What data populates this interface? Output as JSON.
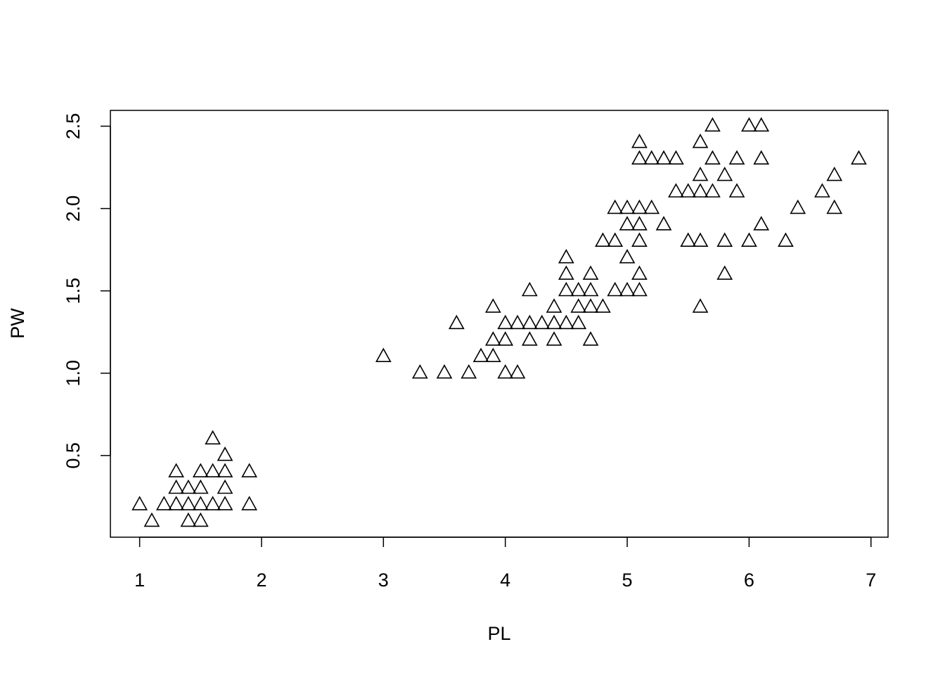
{
  "chart_data": {
    "type": "scatter",
    "title": "",
    "xlabel": "PL",
    "ylabel": "PW",
    "xlim": [
      0.76,
      7.14
    ],
    "ylim": [
      0.004,
      2.596
    ],
    "xticks": [
      1,
      2,
      3,
      4,
      5,
      6,
      7
    ],
    "xtick_labels": [
      "1",
      "2",
      "3",
      "4",
      "5",
      "6",
      "7"
    ],
    "yticks": [
      0.5,
      1.0,
      1.5,
      2.0,
      2.5
    ],
    "ytick_labels": [
      "0.5",
      "1.0",
      "1.5",
      "2.0",
      "2.5"
    ],
    "grid": false,
    "marker": "open-triangle",
    "color": "#000000",
    "points": [
      [
        1.0,
        0.2
      ],
      [
        1.1,
        0.1
      ],
      [
        1.2,
        0.2
      ],
      [
        1.3,
        0.2
      ],
      [
        1.3,
        0.3
      ],
      [
        1.3,
        0.4
      ],
      [
        1.4,
        0.1
      ],
      [
        1.4,
        0.2
      ],
      [
        1.4,
        0.3
      ],
      [
        1.5,
        0.1
      ],
      [
        1.5,
        0.2
      ],
      [
        1.5,
        0.3
      ],
      [
        1.5,
        0.4
      ],
      [
        1.6,
        0.2
      ],
      [
        1.6,
        0.4
      ],
      [
        1.6,
        0.6
      ],
      [
        1.7,
        0.2
      ],
      [
        1.7,
        0.3
      ],
      [
        1.7,
        0.4
      ],
      [
        1.7,
        0.5
      ],
      [
        1.9,
        0.2
      ],
      [
        1.9,
        0.4
      ],
      [
        3.0,
        1.1
      ],
      [
        3.3,
        1.0
      ],
      [
        3.5,
        1.0
      ],
      [
        3.6,
        1.3
      ],
      [
        3.7,
        1.0
      ],
      [
        3.8,
        1.1
      ],
      [
        3.9,
        1.1
      ],
      [
        3.9,
        1.2
      ],
      [
        3.9,
        1.4
      ],
      [
        4.0,
        1.0
      ],
      [
        4.0,
        1.2
      ],
      [
        4.0,
        1.3
      ],
      [
        4.1,
        1.0
      ],
      [
        4.1,
        1.3
      ],
      [
        4.2,
        1.2
      ],
      [
        4.2,
        1.3
      ],
      [
        4.2,
        1.5
      ],
      [
        4.3,
        1.3
      ],
      [
        4.4,
        1.2
      ],
      [
        4.4,
        1.3
      ],
      [
        4.4,
        1.4
      ],
      [
        4.5,
        1.3
      ],
      [
        4.5,
        1.5
      ],
      [
        4.5,
        1.6
      ],
      [
        4.5,
        1.7
      ],
      [
        4.6,
        1.3
      ],
      [
        4.6,
        1.4
      ],
      [
        4.6,
        1.5
      ],
      [
        4.7,
        1.2
      ],
      [
        4.7,
        1.4
      ],
      [
        4.7,
        1.5
      ],
      [
        4.7,
        1.6
      ],
      [
        4.8,
        1.4
      ],
      [
        4.8,
        1.8
      ],
      [
        4.9,
        1.5
      ],
      [
        4.9,
        1.8
      ],
      [
        4.9,
        2.0
      ],
      [
        5.0,
        1.5
      ],
      [
        5.0,
        1.7
      ],
      [
        5.0,
        1.9
      ],
      [
        5.0,
        2.0
      ],
      [
        5.1,
        1.5
      ],
      [
        5.1,
        1.6
      ],
      [
        5.1,
        1.8
      ],
      [
        5.1,
        1.9
      ],
      [
        5.1,
        2.0
      ],
      [
        5.1,
        2.3
      ],
      [
        5.1,
        2.4
      ],
      [
        5.2,
        2.0
      ],
      [
        5.2,
        2.3
      ],
      [
        5.3,
        1.9
      ],
      [
        5.3,
        2.3
      ],
      [
        5.4,
        2.1
      ],
      [
        5.4,
        2.3
      ],
      [
        5.5,
        1.8
      ],
      [
        5.5,
        2.1
      ],
      [
        5.6,
        1.4
      ],
      [
        5.6,
        1.8
      ],
      [
        5.6,
        2.1
      ],
      [
        5.6,
        2.2
      ],
      [
        5.6,
        2.4
      ],
      [
        5.7,
        2.1
      ],
      [
        5.7,
        2.3
      ],
      [
        5.7,
        2.5
      ],
      [
        5.8,
        1.6
      ],
      [
        5.8,
        1.8
      ],
      [
        5.8,
        2.2
      ],
      [
        5.9,
        2.1
      ],
      [
        5.9,
        2.3
      ],
      [
        6.0,
        1.8
      ],
      [
        6.0,
        2.5
      ],
      [
        6.1,
        1.9
      ],
      [
        6.1,
        2.3
      ],
      [
        6.1,
        2.5
      ],
      [
        6.3,
        1.8
      ],
      [
        6.4,
        2.0
      ],
      [
        6.6,
        2.1
      ],
      [
        6.7,
        2.0
      ],
      [
        6.7,
        2.2
      ],
      [
        6.9,
        2.3
      ]
    ]
  }
}
